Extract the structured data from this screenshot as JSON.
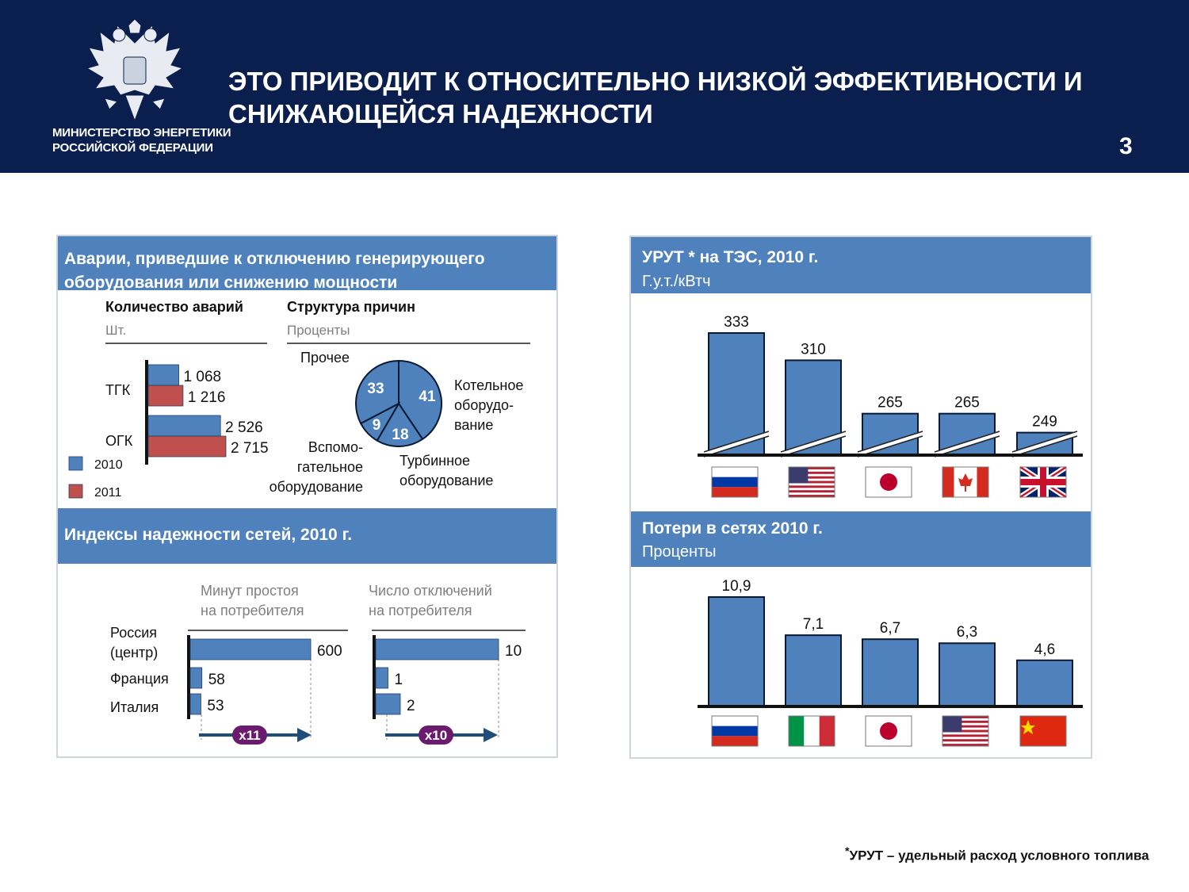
{
  "header": {
    "ministry_line1": "МИНИСТЕРСТВО ЭНЕРГЕТИКИ",
    "ministry_line2": "РОССИЙСКОЙ ФЕДЕРАЦИИ",
    "title_line1": "ЭТО ПРИВОДИТ К ОТНОСИТЕЛЬНО НИЗКОЙ ЭФФЕКТИВНОСТИ И",
    "title_line2": "СНИЖАЮЩЕЙСЯ НАДЕЖНОСТИ",
    "page_number": "3"
  },
  "colors": {
    "navy": "#0a1f4e",
    "bar_blue": "#4f81bd",
    "bar_red": "#c0504d",
    "arrow": "#1f4e79",
    "badge": "#6a1b6e"
  },
  "accidents_panel": {
    "title_line1": "Аварии, приведшие к отключению генерирующего",
    "title_line2": "оборудования или снижению мощности",
    "count_title": "Количество аварий",
    "count_unit": "Шт.",
    "cause_title": "Структура причин",
    "cause_unit": "Проценты"
  },
  "reliability_panel": {
    "title": "Индексы надежности сетей, 2010 г.",
    "col1_line1": "Минут простоя",
    "col1_line2": "на потребителя",
    "col2_line1": "Число отключений",
    "col2_line2": "на потребителя",
    "row1_line1": "Россия",
    "row1_line2": "(центр)",
    "row2": "Франция",
    "row3": "Италия",
    "badge1": "x11",
    "badge2": "x10"
  },
  "urut_panel": {
    "title_line1": "УРУТ * на ТЭС, 2010 г.",
    "title_line2": "Г.у.т./кВтч"
  },
  "losses_panel": {
    "title_line1": "Потери в сетях 2010 г.",
    "title_line2": "Проценты"
  },
  "footnote": {
    "star": "*",
    "text": "УРУТ – удельный расход условного топлива"
  },
  "chart_data": [
    {
      "type": "bar",
      "orientation": "horizontal",
      "title": "Количество аварий",
      "unit": "Шт.",
      "categories": [
        "ТГК",
        "ОГК"
      ],
      "series": [
        {
          "name": "2010",
          "values": [
            1068,
            2526
          ],
          "labels": [
            "1 068",
            "2 526"
          ]
        },
        {
          "name": "2011",
          "values": [
            1216,
            2715
          ],
          "labels": [
            "1 216",
            "2 715"
          ]
        }
      ],
      "xlim": [
        0,
        2715
      ],
      "legend": "bottom-left"
    },
    {
      "type": "pie",
      "title": "Структура причин",
      "unit": "Проценты",
      "slices": [
        {
          "label": "Котельное оборудо-вание",
          "lines": [
            "Котельное",
            "оборудо-",
            "вание"
          ],
          "value": 41,
          "value_label": "41"
        },
        {
          "label": "Турбинное оборудование",
          "lines": [
            "Турбинное",
            "оборудование"
          ],
          "value": 18,
          "value_label": "18"
        },
        {
          "label": "Вспомо-гательное оборудование",
          "lines": [
            "Вспомо-",
            "гательное",
            "оборудование"
          ],
          "value": 9,
          "value_label": "9"
        },
        {
          "label": "Прочее",
          "lines": [
            "Прочее"
          ],
          "value": 33,
          "value_label": "33"
        }
      ]
    },
    {
      "type": "bar",
      "orientation": "horizontal",
      "title": "Минут простоя на потребителя",
      "categories": [
        "Россия (центр)",
        "Франция",
        "Италия"
      ],
      "values": [
        600,
        58,
        53
      ],
      "labels": [
        "600",
        "58",
        "53"
      ],
      "xlim": [
        0,
        600
      ]
    },
    {
      "type": "bar",
      "orientation": "horizontal",
      "title": "Число отключений на потребителя",
      "categories": [
        "Россия (центр)",
        "Франция",
        "Италия"
      ],
      "values": [
        10,
        1,
        2
      ],
      "labels": [
        "10",
        "1",
        "2"
      ],
      "xlim": [
        0,
        10
      ]
    },
    {
      "type": "bar",
      "title": "УРУТ * на ТЭС, 2010 г.",
      "ylabel": "Г.у.т./кВтч",
      "categories": [
        "Россия",
        "США",
        "Япония",
        "Канада",
        "Великобритания"
      ],
      "flags": [
        "ru",
        "us",
        "jp",
        "ca",
        "gb"
      ],
      "values": [
        333,
        310,
        265,
        265,
        249
      ],
      "labels": [
        "333",
        "310",
        "265",
        "265",
        "249"
      ],
      "axis_break": true,
      "ylim": [
        230,
        333
      ]
    },
    {
      "type": "bar",
      "title": "Потери в сетях 2010 г.",
      "ylabel": "Проценты",
      "categories": [
        "Россия",
        "Италия",
        "Япония",
        "США",
        "Китай"
      ],
      "flags": [
        "ru",
        "it",
        "jp",
        "us",
        "cn"
      ],
      "values": [
        10.9,
        7.1,
        6.7,
        6.3,
        4.6
      ],
      "labels": [
        "10,9",
        "7,1",
        "6,7",
        "6,3",
        "4,6"
      ],
      "ylim": [
        0,
        10.9
      ]
    }
  ]
}
